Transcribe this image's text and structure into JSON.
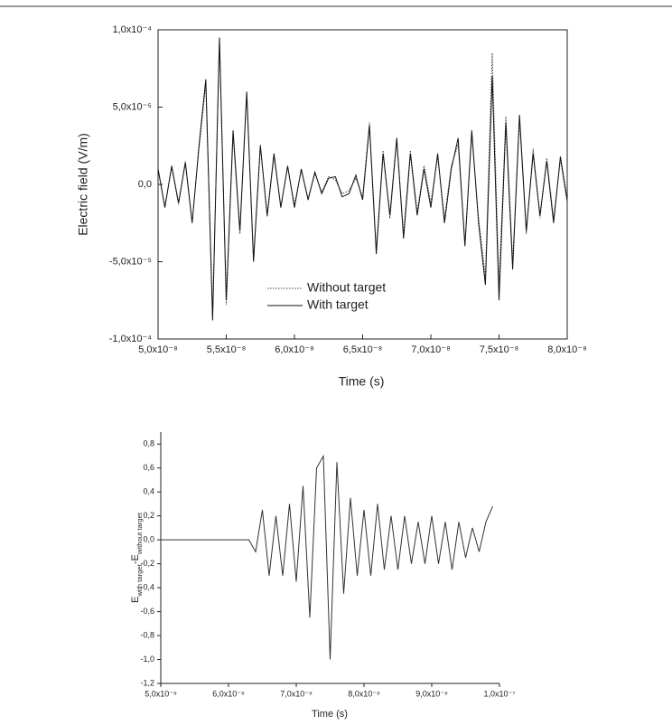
{
  "chart_data": [
    {
      "type": "line",
      "x_label": "Time (s)",
      "y_label": "Electric field (V/m)",
      "x": [
        5e-08,
        5.05e-08,
        5.1e-08,
        5.15e-08,
        5.2e-08,
        5.25e-08,
        5.3e-08,
        5.35e-08,
        5.4e-08,
        5.45e-08,
        5.5e-08,
        5.55e-08,
        5.6e-08,
        5.65e-08,
        5.7e-08,
        5.75e-08,
        5.8e-08,
        5.85e-08,
        5.9e-08,
        5.95e-08,
        6e-08,
        6.05e-08,
        6.1e-08,
        6.15e-08,
        6.2e-08,
        6.25e-08,
        6.3e-08,
        6.35e-08,
        6.4e-08,
        6.45e-08,
        6.5e-08,
        6.55e-08,
        6.6e-08,
        6.65e-08,
        6.7e-08,
        6.75e-08,
        6.8e-08,
        6.85e-08,
        6.9e-08,
        6.95e-08,
        7e-08,
        7.05e-08,
        7.1e-08,
        7.15e-08,
        7.2e-08,
        7.25e-08,
        7.3e-08,
        7.35e-08,
        7.4e-08,
        7.45e-08,
        7.5e-08,
        7.55e-08,
        7.6e-08,
        7.65e-08,
        7.7e-08,
        7.75e-08,
        7.8e-08,
        7.85e-08,
        7.9e-08,
        7.95e-08,
        8e-08
      ],
      "series": [
        {
          "name": "Without target",
          "color": "#444",
          "dash": "dotted",
          "values": [
            1e-05,
            -1.4e-05,
            1.1e-05,
            -1.3e-05,
            1.5e-05,
            -2.4e-05,
            2.3e-05,
            6.5e-05,
            -8.5e-05,
            9.3e-05,
            -7.8e-05,
            3.2e-05,
            -3.2e-05,
            5.8e-05,
            -4.8e-05,
            2.6e-05,
            -2.1e-05,
            1.8e-05,
            -1.4e-05,
            1.1e-05,
            -1.3e-05,
            9e-06,
            -9e-06,
            7e-06,
            -5e-06,
            5e-06,
            3e-06,
            -6e-06,
            -4e-06,
            4e-06,
            -8e-06,
            4e-05,
            -4.2e-05,
            2.2e-05,
            -2.2e-05,
            2.8e-05,
            -3.2e-05,
            2.2e-05,
            -1.8e-05,
            1.2e-05,
            -1.2e-05,
            1.8e-05,
            -2.2e-05,
            1.2e-05,
            2.6e-05,
            -3.8e-05,
            3.2e-05,
            -2.2e-05,
            -6e-05,
            8.5e-05,
            -6.5e-05,
            4.4e-05,
            -5e-05,
            4.2e-05,
            -3.2e-05,
            2.3e-05,
            -2.2e-05,
            1.7e-05,
            -2.2e-05,
            1.6e-05,
            -1.2e-05
          ]
        },
        {
          "name": "With target",
          "color": "#111",
          "dash": "solid",
          "values": [
            1e-05,
            -1.5e-05,
            1.2e-05,
            -1.2e-05,
            1.4e-05,
            -2.5e-05,
            2.5e-05,
            6.8e-05,
            -8.8e-05,
            9.5e-05,
            -7.5e-05,
            3.5e-05,
            -3e-05,
            6e-05,
            -5e-05,
            2.5e-05,
            -2e-05,
            2e-05,
            -1.5e-05,
            1.2e-05,
            -1.5e-05,
            1e-05,
            -1e-05,
            8e-06,
            -6e-06,
            4e-06,
            5e-06,
            -8e-06,
            -6e-06,
            6e-06,
            -1e-05,
            3.8e-05,
            -4.5e-05,
            2e-05,
            -2e-05,
            3e-05,
            -3.5e-05,
            2e-05,
            -2e-05,
            1e-05,
            -1.5e-05,
            2e-05,
            -2.5e-05,
            1e-05,
            3e-05,
            -4e-05,
            3.5e-05,
            -2.5e-05,
            -6.5e-05,
            7e-05,
            -7.5e-05,
            4e-05,
            -5.5e-05,
            4.5e-05,
            -3e-05,
            2e-05,
            -2e-05,
            1.5e-05,
            -2.5e-05,
            1.8e-05,
            -1e-05
          ]
        }
      ],
      "xlim": [
        5e-08,
        8e-08
      ],
      "ylim": [
        -0.0001,
        0.0001
      ],
      "xticks": [
        {
          "value": 5e-08,
          "label": "5,0x10⁻⁸"
        },
        {
          "value": 5.5e-08,
          "label": "5,5x10⁻⁸"
        },
        {
          "value": 6e-08,
          "label": "6,0x10⁻⁸"
        },
        {
          "value": 6.5e-08,
          "label": "6,5x10⁻⁸"
        },
        {
          "value": 7e-08,
          "label": "7,0x10⁻⁸"
        },
        {
          "value": 7.5e-08,
          "label": "7,5x10⁻⁸"
        },
        {
          "value": 8e-08,
          "label": "8,0x10⁻⁸"
        }
      ],
      "yticks": [
        {
          "value": -0.0001,
          "label": "-1,0x10⁻⁴"
        },
        {
          "value": -5e-05,
          "label": "-5,0x10⁻⁵"
        },
        {
          "value": 0,
          "label": "0,0"
        },
        {
          "value": 5e-05,
          "label": "5,0x10⁻⁵"
        },
        {
          "value": 0.0001,
          "label": "1,0x10⁻⁴"
        }
      ]
    },
    {
      "type": "line",
      "x_label": "Time (s)",
      "y_label_parts": [
        "E",
        "with target",
        "-E",
        "without target"
      ],
      "color": "#333",
      "x": [
        5e-08,
        6.3e-08,
        6.4e-08,
        6.5e-08,
        6.6e-08,
        6.7e-08,
        6.8e-08,
        6.9e-08,
        7e-08,
        7.1e-08,
        7.2e-08,
        7.3e-08,
        7.4e-08,
        7.5e-08,
        7.6e-08,
        7.7e-08,
        7.8e-08,
        7.9e-08,
        8e-08,
        8.1e-08,
        8.2e-08,
        8.3e-08,
        8.4e-08,
        8.5e-08,
        8.6e-08,
        8.7e-08,
        8.8e-08,
        8.9e-08,
        9e-08,
        9.1e-08,
        9.2e-08,
        9.3e-08,
        9.4e-08,
        9.5e-08,
        9.6e-08,
        9.7e-08,
        9.8e-08,
        9.9e-08
      ],
      "values": [
        0,
        0,
        -0.1,
        0.25,
        -0.3,
        0.2,
        -0.3,
        0.3,
        -0.35,
        0.45,
        -0.65,
        0.6,
        0.7,
        -1,
        0.65,
        -0.45,
        0.35,
        -0.3,
        0.25,
        -0.3,
        0.3,
        -0.25,
        0.2,
        -0.25,
        0.2,
        -0.2,
        0.15,
        -0.2,
        0.2,
        -0.2,
        0.15,
        -0.25,
        0.15,
        -0.15,
        0.1,
        -0.1,
        0.15,
        0.28
      ],
      "xlim": [
        5e-08,
        1e-07
      ],
      "ylim": [
        -1.2,
        0.9
      ],
      "xticks": [
        {
          "value": 5e-08,
          "label": "5,0x10⁻⁸"
        },
        {
          "value": 6e-08,
          "label": "6,0x10⁻⁸"
        },
        {
          "value": 7e-08,
          "label": "7,0x10⁻⁸"
        },
        {
          "value": 8e-08,
          "label": "8,0x10⁻⁸"
        },
        {
          "value": 9e-08,
          "label": "9,0x10⁻⁸"
        },
        {
          "value": 1e-07,
          "label": "1,0x10⁻⁷"
        }
      ],
      "yticks": [
        {
          "value": -1.2,
          "label": "-1,2"
        },
        {
          "value": -1,
          "label": "-1,0"
        },
        {
          "value": -0.8,
          "label": "-0,8"
        },
        {
          "value": -0.6,
          "label": "-0,6"
        },
        {
          "value": -0.4,
          "label": "-0,4"
        },
        {
          "value": -0.2,
          "label": "-0,2"
        },
        {
          "value": 0,
          "label": "0,0"
        },
        {
          "value": 0.2,
          "label": "0,2"
        },
        {
          "value": 0.4,
          "label": "0,4"
        },
        {
          "value": 0.6,
          "label": "0,6"
        },
        {
          "value": 0.8,
          "label": "0,8"
        }
      ]
    }
  ]
}
